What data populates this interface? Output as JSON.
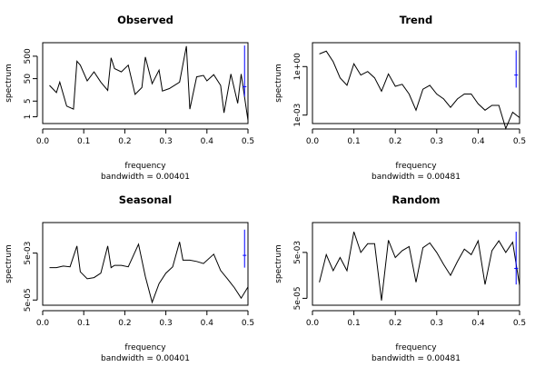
{
  "chart_data": [
    {
      "type": "line",
      "title": "Observed",
      "xlabel": "frequency",
      "subtitle": "bandwidth = 0.00401",
      "ylabel": "spectrum",
      "log_y": true,
      "xlim": [
        0,
        0.5
      ],
      "ylim": [
        0.5,
        2000
      ],
      "xticks": [
        0.0,
        0.1,
        0.2,
        0.3,
        0.4,
        0.5
      ],
      "xtick_labels": [
        "0.0",
        "0.1",
        "0.2",
        "0.3",
        "0.4",
        "0.5"
      ],
      "yticks": [
        1,
        5,
        50,
        500
      ],
      "ytick_labels": [
        "1",
        "5",
        "50",
        "500"
      ],
      "x": [
        0.0167,
        0.0333,
        0.0417,
        0.0583,
        0.075,
        0.0833,
        0.0917,
        0.1083,
        0.125,
        0.1417,
        0.1583,
        0.1667,
        0.175,
        0.1917,
        0.2083,
        0.225,
        0.2417,
        0.25,
        0.2667,
        0.2833,
        0.2917,
        0.3083,
        0.3333,
        0.35,
        0.3583,
        0.375,
        0.3917,
        0.4,
        0.4167,
        0.4333,
        0.4417,
        0.4583,
        0.475,
        0.4833,
        0.5
      ],
      "y": [
        25,
        12,
        35,
        3,
        2.2,
        300,
        200,
        40,
        100,
        35,
        15,
        420,
        140,
        100,
        200,
        10,
        20,
        460,
        30,
        120,
        14,
        18,
        35,
        1400,
        2.2,
        60,
        70,
        40,
        75,
        25,
        1.5,
        80,
        4,
        80,
        0.7
      ],
      "conf_bar": {
        "x": 0.4917,
        "lo": 8,
        "hi": 1500,
        "center": 22,
        "color": "#0000ff"
      }
    },
    {
      "type": "line",
      "title": "Trend",
      "xlabel": "frequency",
      "subtitle": "bandwidth = 0.00481",
      "ylabel": "spectrum",
      "log_y": true,
      "xlim": [
        0,
        0.5
      ],
      "ylim": [
        0.0003,
        30
      ],
      "xticks": [
        0.0,
        0.1,
        0.2,
        0.3,
        0.4,
        0.5
      ],
      "xtick_labels": [
        "0.0",
        "0.1",
        "0.2",
        "0.3",
        "0.4",
        "0.5"
      ],
      "yticks": [
        0.001,
        1
      ],
      "ytick_labels": [
        "1e-03",
        "1e+00"
      ],
      "x": [
        0.0167,
        0.0333,
        0.05,
        0.0667,
        0.0833,
        0.1,
        0.1167,
        0.1333,
        0.15,
        0.1667,
        0.1833,
        0.2,
        0.2167,
        0.2333,
        0.25,
        0.2667,
        0.2833,
        0.3,
        0.3167,
        0.3333,
        0.35,
        0.3667,
        0.3833,
        0.4,
        0.4167,
        0.4333,
        0.45,
        0.4667,
        0.4833,
        0.5
      ],
      "y": [
        6,
        9,
        2,
        0.2,
        0.07,
        1.5,
        0.3,
        0.5,
        0.2,
        0.03,
        0.35,
        0.06,
        0.08,
        0.02,
        0.002,
        0.04,
        0.07,
        0.02,
        0.01,
        0.003,
        0.01,
        0.02,
        0.02,
        0.005,
        0.002,
        0.004,
        0.004,
        0.00015,
        0.0015,
        0.0007
      ],
      "conf_bar": {
        "x": 0.4917,
        "lo": 0.05,
        "hi": 10,
        "center": 0.3,
        "color": "#0000ff"
      }
    },
    {
      "type": "line",
      "title": "Seasonal",
      "xlabel": "frequency",
      "subtitle": "bandwidth = 0.00401",
      "ylabel": "spectrum",
      "log_y": true,
      "xlim": [
        0,
        0.5
      ],
      "ylim": [
        3e-05,
        0.1
      ],
      "xticks": [
        0.0,
        0.1,
        0.2,
        0.3,
        0.4,
        0.5
      ],
      "xtick_labels": [
        "0.0",
        "0.1",
        "0.2",
        "0.3",
        "0.4",
        "0.5"
      ],
      "yticks": [
        5e-05,
        0.005
      ],
      "ytick_labels": [
        "5e-05",
        "5e-03"
      ],
      "x": [
        0.0167,
        0.0333,
        0.05,
        0.0667,
        0.0833,
        0.0917,
        0.1083,
        0.125,
        0.1417,
        0.1583,
        0.1667,
        0.175,
        0.1917,
        0.2083,
        0.2333,
        0.25,
        0.2667,
        0.2833,
        0.3,
        0.3167,
        0.3333,
        0.3417,
        0.3583,
        0.375,
        0.3917,
        0.4167,
        0.4333,
        0.45,
        0.4667,
        0.4833,
        0.5
      ],
      "y": [
        0.0012,
        0.0012,
        0.0014,
        0.0013,
        0.01,
        0.0008,
        0.0004,
        0.00045,
        0.0007,
        0.01,
        0.0012,
        0.0015,
        0.0015,
        0.0013,
        0.012,
        0.0005,
        4e-05,
        0.00025,
        0.0007,
        0.0013,
        0.015,
        0.0025,
        0.0025,
        0.0022,
        0.0018,
        0.0045,
        0.0009,
        0.0004,
        0.00017,
        6e-05,
        0.00018
      ],
      "conf_bar": {
        "x": 0.4917,
        "lo": 0.0012,
        "hi": 0.05,
        "center": 0.004,
        "color": "#0000ff"
      }
    },
    {
      "type": "line",
      "title": "Random",
      "xlabel": "frequency",
      "subtitle": "bandwidth = 0.00481",
      "ylabel": "spectrum",
      "log_y": true,
      "xlim": [
        0,
        0.5
      ],
      "ylim": [
        2.5e-05,
        0.1
      ],
      "xticks": [
        0.0,
        0.1,
        0.2,
        0.3,
        0.4,
        0.5
      ],
      "xtick_labels": [
        "0.0",
        "0.1",
        "0.2",
        "0.3",
        "0.4",
        "0.5"
      ],
      "yticks": [
        5e-05,
        0.005
      ],
      "ytick_labels": [
        "5e-05",
        "5e-03"
      ],
      "x": [
        0.0167,
        0.0333,
        0.05,
        0.0667,
        0.0833,
        0.1,
        0.1167,
        0.1333,
        0.15,
        0.1667,
        0.1833,
        0.2,
        0.2167,
        0.2333,
        0.25,
        0.2667,
        0.2833,
        0.3,
        0.3167,
        0.3333,
        0.35,
        0.3667,
        0.3833,
        0.4,
        0.4167,
        0.4333,
        0.45,
        0.4667,
        0.4833,
        0.5
      ],
      "y": [
        0.00025,
        0.004,
        0.0008,
        0.003,
        0.0008,
        0.04,
        0.005,
        0.012,
        0.012,
        4e-05,
        0.017,
        0.003,
        0.006,
        0.009,
        0.00025,
        0.008,
        0.013,
        0.005,
        0.0015,
        0.0005,
        0.002,
        0.007,
        0.004,
        0.016,
        0.0002,
        0.006,
        0.016,
        0.005,
        0.014,
        0.00018
      ],
      "conf_bar": {
        "x": 0.4917,
        "lo": 0.0002,
        "hi": 0.04,
        "center": 0.001,
        "color": "#0000ff"
      }
    }
  ]
}
